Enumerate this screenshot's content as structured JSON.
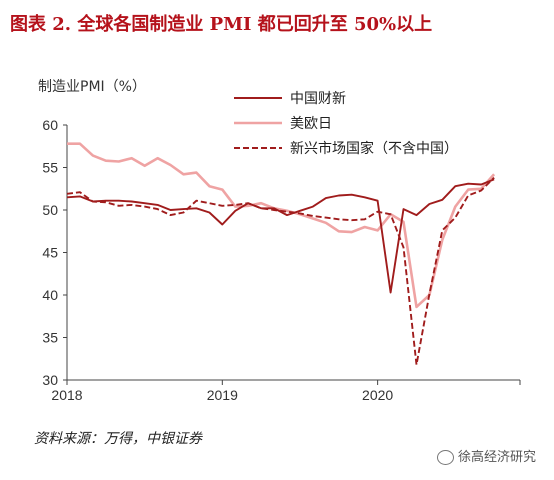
{
  "header": {
    "title": "图表 2.   全球各国制造业 PMI 都已回升至 50%以上"
  },
  "footer": {
    "source": "资料来源：万得，中银证券",
    "watermark": "徐高经济研究"
  },
  "chart_data": {
    "type": "line",
    "ylabel": "制造业PMI（%）",
    "ylim": [
      30,
      60
    ],
    "yticks": [
      30,
      35,
      40,
      45,
      50,
      55,
      60
    ],
    "xlim": [
      0,
      35
    ],
    "xticks": [
      {
        "value": 0,
        "label": "2018"
      },
      {
        "value": 12,
        "label": "2019"
      },
      {
        "value": 24,
        "label": "2020"
      }
    ],
    "legend_position": "top-right",
    "series": [
      {
        "name": "中国财新",
        "color": "#a01c1c",
        "style": "solid",
        "x": [
          0,
          1,
          2,
          3,
          4,
          5,
          6,
          7,
          8,
          9,
          10,
          11,
          12,
          13,
          14,
          15,
          16,
          17,
          18,
          19,
          20,
          21,
          22,
          23,
          24,
          25,
          26,
          27,
          28,
          29,
          30,
          31,
          32,
          33
        ],
        "values": [
          51.5,
          51.6,
          51.0,
          51.1,
          51.1,
          51.0,
          50.8,
          50.6,
          50.0,
          50.1,
          50.2,
          49.7,
          48.3,
          49.9,
          50.8,
          50.2,
          50.2,
          49.4,
          49.9,
          50.4,
          51.4,
          51.7,
          51.8,
          51.5,
          51.1,
          40.3,
          50.1,
          49.4,
          50.7,
          51.2,
          52.8,
          53.1,
          53.0,
          53.6
        ]
      },
      {
        "name": "美欧日",
        "color": "#efa3a3",
        "style": "solid",
        "x": [
          0,
          1,
          2,
          3,
          4,
          5,
          6,
          7,
          8,
          9,
          10,
          11,
          12,
          13,
          14,
          15,
          16,
          17,
          18,
          19,
          20,
          21,
          22,
          23,
          24,
          25,
          26,
          27,
          28,
          29,
          30,
          31,
          32,
          33
        ],
        "values": [
          57.8,
          57.8,
          56.4,
          55.8,
          55.7,
          56.1,
          55.2,
          56.1,
          55.3,
          54.2,
          54.4,
          52.8,
          52.4,
          50.4,
          50.5,
          50.8,
          50.2,
          49.9,
          49.5,
          49.0,
          48.5,
          47.5,
          47.4,
          48.0,
          47.6,
          49.5,
          48.6,
          38.6,
          40.0,
          46.5,
          50.4,
          52.4,
          52.5,
          54.2
        ]
      },
      {
        "name": "新兴市场国家（不含中国）",
        "color": "#a01c1c",
        "style": "dashed",
        "x": [
          0,
          1,
          2,
          3,
          4,
          5,
          6,
          7,
          8,
          9,
          10,
          11,
          12,
          13,
          14,
          15,
          16,
          17,
          18,
          19,
          20,
          21,
          22,
          23,
          24,
          25,
          26,
          27,
          28,
          29,
          30,
          31,
          32,
          33
        ],
        "values": [
          51.9,
          52.1,
          51.0,
          50.9,
          50.5,
          50.6,
          50.4,
          50.1,
          49.4,
          49.7,
          51.1,
          50.8,
          50.5,
          50.6,
          50.8,
          50.2,
          50.0,
          49.8,
          49.6,
          49.3,
          49.1,
          48.9,
          48.8,
          48.9,
          49.8,
          49.5,
          45.6,
          31.8,
          40.1,
          47.6,
          49.1,
          51.7,
          52.3,
          53.8
        ]
      }
    ]
  }
}
